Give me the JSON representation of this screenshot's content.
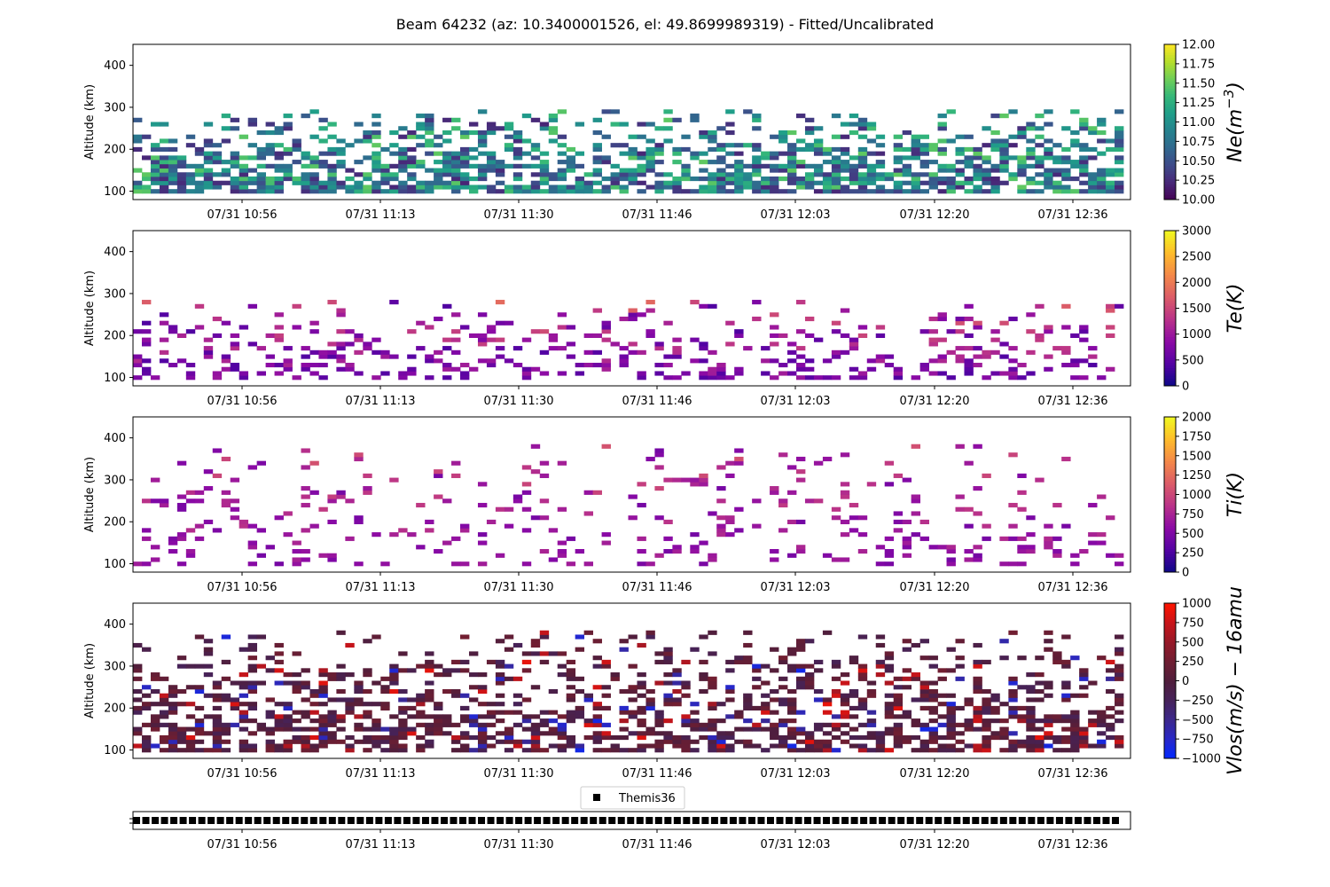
{
  "figure": {
    "title": "Beam 64232 (az: 10.3400001526, el: 49.8699989319) - Fitted/Uncalibrated"
  },
  "chart_data": [
    {
      "type": "heatmap",
      "name": "ne",
      "ylabel": "Altitude (km)",
      "ylim": [
        80,
        450
      ],
      "yticks": [
        100,
        200,
        300,
        400
      ],
      "x_tick_labels": [
        "07/31 10:56",
        "07/31 11:13",
        "07/31 11:30",
        "07/31 11:46",
        "07/31 12:03",
        "07/31 12:20",
        "07/31 12:36"
      ],
      "colorbar": {
        "label": "Ne(m^-3)",
        "label_base": "Ne(m",
        "label_exp": "−3",
        "label_tail": ")",
        "min": 10.0,
        "max": 12.0,
        "ticks": [
          "10.00",
          "10.25",
          "10.50",
          "10.75",
          "11.00",
          "11.25",
          "11.50",
          "11.75",
          "12.00"
        ],
        "colormap": "viridis"
      },
      "alt_range": [
        100,
        290
      ],
      "value_range": [
        10.2,
        11.5
      ],
      "density": 0.78
    },
    {
      "type": "heatmap",
      "name": "te",
      "ylabel": "Altitude (km)",
      "ylim": [
        80,
        450
      ],
      "yticks": [
        100,
        200,
        300,
        400
      ],
      "x_tick_labels": [
        "07/31 10:56",
        "07/31 11:13",
        "07/31 11:30",
        "07/31 11:46",
        "07/31 12:03",
        "07/31 12:20",
        "07/31 12:36"
      ],
      "colorbar": {
        "label": "Te(K)",
        "min": 0,
        "max": 3000,
        "ticks": [
          "0",
          "500",
          "1000",
          "1500",
          "2000",
          "2500",
          "3000"
        ],
        "colormap": "plasma"
      },
      "alt_range": [
        100,
        280
      ],
      "value_range": [
        400,
        1900
      ],
      "density": 0.32
    },
    {
      "type": "heatmap",
      "name": "ti",
      "ylabel": "Altitude (km)",
      "ylim": [
        80,
        450
      ],
      "yticks": [
        100,
        200,
        300,
        400
      ],
      "x_tick_labels": [
        "07/31 10:56",
        "07/31 11:13",
        "07/31 11:30",
        "07/31 11:46",
        "07/31 12:03",
        "07/31 12:20",
        "07/31 12:36"
      ],
      "colorbar": {
        "label": "Ti(K)",
        "min": 0,
        "max": 2000,
        "ticks": [
          "0",
          "250",
          "500",
          "750",
          "1000",
          "1250",
          "1500",
          "1750",
          "2000"
        ],
        "colormap": "plasma"
      },
      "alt_range": [
        100,
        380
      ],
      "value_range": [
        450,
        1150
      ],
      "density": 0.18
    },
    {
      "type": "heatmap",
      "name": "vlos",
      "ylabel": "Altitude (km)",
      "ylim": [
        80,
        450
      ],
      "yticks": [
        100,
        200,
        300,
        400
      ],
      "x_tick_labels": [
        "07/31 10:56",
        "07/31 11:13",
        "07/31 11:30",
        "07/31 11:46",
        "07/31 12:03",
        "07/31 12:20",
        "07/31 12:36"
      ],
      "colorbar": {
        "label": "Vlos(m/s) − 16amu",
        "min": -1000,
        "max": 1000,
        "ticks": [
          "−1000",
          "−750",
          "−500",
          "−250",
          "0",
          "250",
          "500",
          "750",
          "1000"
        ],
        "colormap": "bwr_dark"
      },
      "alt_range": [
        100,
        380
      ],
      "value_range": [
        -900,
        900
      ],
      "density": 0.62
    },
    {
      "type": "scatter",
      "name": "beam-timeline",
      "legend": "Themis36",
      "legend_position": "top-center",
      "marker": "square",
      "color": "#000000",
      "count": 106,
      "x_tick_labels": [
        "07/31 10:56",
        "07/31 11:13",
        "07/31 11:30",
        "07/31 11:46",
        "07/31 12:03",
        "07/31 12:20",
        "07/31 12:36"
      ]
    }
  ]
}
